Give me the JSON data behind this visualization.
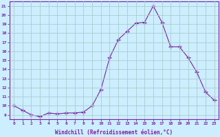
{
  "x": [
    0,
    1,
    2,
    3,
    4,
    5,
    6,
    7,
    8,
    9,
    10,
    11,
    12,
    13,
    14,
    15,
    16,
    17,
    18,
    19,
    20,
    21,
    22,
    23
  ],
  "y": [
    10,
    9.5,
    9.0,
    8.8,
    9.2,
    9.1,
    9.2,
    9.2,
    9.3,
    10.0,
    11.8,
    15.3,
    17.3,
    18.2,
    19.1,
    19.2,
    21.0,
    19.2,
    16.5,
    16.5,
    15.3,
    13.7,
    11.5,
    10.6
  ],
  "line_color": "#7b1fa2",
  "marker": "+",
  "marker_size": 4,
  "bg_color": "#cceeff",
  "grid_color": "#aacccc",
  "ylabel_ticks": [
    9,
    10,
    11,
    12,
    13,
    14,
    15,
    16,
    17,
    18,
    19,
    20,
    21
  ],
  "xlabel": "Windchill (Refroidissement éolien,°C)",
  "ylim": [
    8.5,
    21.5
  ],
  "xlim": [
    -0.5,
    23.5
  ],
  "axis_color": "#7b1fa2",
  "tick_color": "#7b1fa2"
}
